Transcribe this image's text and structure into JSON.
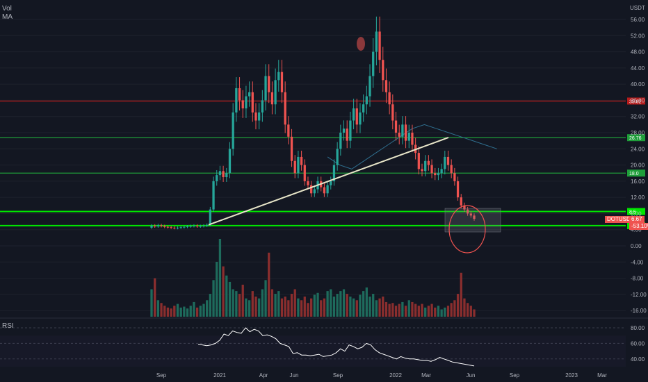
{
  "header": {
    "indicator_vol": "Vol",
    "indicator_ma": "MA",
    "currency": "USDT",
    "rsi_label": "RSI"
  },
  "colors": {
    "background": "#131722",
    "up": "#26a69a",
    "down": "#ef5350",
    "grid": "#1e222d",
    "axis_text": "#b2b5be",
    "bright_green_line": "#00e600",
    "dark_green_line": "#1f9e3a",
    "red_line": "#b71c1c",
    "ma_line": "#2962ff",
    "trend_line": "#e8e6c9",
    "rsi_line": "#ffffff",
    "ellipse": "#ef5350"
  },
  "chart_data": [
    {
      "type": "candlestick",
      "symbol": "DOTUSDT",
      "last_price": "6.67",
      "last_change": "-53.10%",
      "y_axis_ticks": [
        "56.00",
        "52.00",
        "48.00",
        "44.00",
        "40.00",
        "36.00",
        "32.00",
        "28.00",
        "24.00",
        "20.00",
        "16.00",
        "12.00",
        "8.00",
        "4.00",
        "0.00",
        "-4.00",
        "-8.00",
        "-12.00",
        "-16.00"
      ],
      "x_axis_ticks": [
        "Sep",
        "2021",
        "Apr",
        "Jun",
        "Sep",
        "2022",
        "Mar",
        "Jun",
        "Sep",
        "2023",
        "Mar"
      ],
      "horizontal_levels": [
        {
          "value": 35.82,
          "label": "35.82",
          "color": "#b71c1c"
        },
        {
          "value": 26.76,
          "label": "26.76",
          "color": "#1f9e3a"
        },
        {
          "value": 18.0,
          "label": "18.0",
          "color": "#1f9e3a"
        },
        {
          "value": 8.5,
          "label": "8.5",
          "color": "#00e600"
        },
        {
          "value": 5.0,
          "label": "5.0",
          "color": "#00e600"
        }
      ],
      "weekly_closes": [
        5.0,
        4.8,
        5.1,
        4.9,
        4.7,
        4.6,
        4.5,
        4.4,
        4.5,
        4.6,
        4.7,
        4.8,
        4.9,
        5.0,
        4.8,
        4.9,
        5.0,
        5.2,
        9.0,
        16.0,
        17.5,
        18.5,
        17.0,
        18.0,
        24.0,
        33.0,
        39.0,
        36.0,
        34.0,
        37.0,
        38.0,
        33.0,
        31.0,
        33.0,
        36.0,
        42.0,
        38.0,
        35.0,
        41.0,
        43.0,
        38.0,
        30.0,
        27.0,
        21.0,
        18.0,
        22.0,
        20.0,
        16.0,
        15.0,
        13.0,
        14.0,
        16.0,
        14.5,
        13.0,
        15.0,
        16.0,
        20.0,
        24.0,
        28.0,
        29.0,
        26.0,
        31.0,
        34.0,
        30.0,
        33.0,
        35.0,
        37.0,
        42.0,
        48.0,
        53.0,
        46.0,
        41.0,
        38.0,
        35.0,
        31.0,
        28.0,
        27.0,
        30.0,
        26.0,
        28.0,
        25.0,
        23.0,
        19.0,
        18.5,
        21.0,
        20.0,
        18.0,
        17.5,
        18.0,
        19.0,
        22.0,
        20.0,
        18.0,
        16.0,
        12.0,
        10.0,
        9.0,
        8.0,
        7.5,
        6.67
      ],
      "weekly_volumes": [
        30,
        42,
        18,
        15,
        12,
        10,
        9,
        12,
        14,
        10,
        11,
        9,
        12,
        16,
        10,
        12,
        14,
        18,
        25,
        40,
        60,
        85,
        55,
        45,
        38,
        30,
        28,
        25,
        35,
        20,
        18,
        28,
        22,
        20,
        30,
        40,
        70,
        30,
        25,
        28,
        20,
        22,
        18,
        25,
        30,
        20,
        18,
        22,
        15,
        20,
        24,
        26,
        18,
        20,
        28,
        30,
        22,
        25,
        28,
        30,
        25,
        22,
        20,
        18,
        24,
        28,
        32,
        22,
        25,
        18,
        20,
        22,
        16,
        14,
        15,
        12,
        14,
        16,
        12,
        18,
        16,
        14,
        12,
        14,
        10,
        12,
        14,
        10,
        12,
        8,
        10,
        12,
        15,
        18,
        25,
        48,
        20,
        15,
        12,
        8
      ],
      "trend_line": {
        "from_value": 5.2,
        "to_value": 26.8
      },
      "ma_values": [
        22,
        20,
        19,
        21,
        23,
        25,
        27,
        29,
        30,
        29,
        28,
        27,
        26,
        25,
        24
      ]
    },
    {
      "type": "line",
      "name": "RSI",
      "y_axis_ticks": [
        "80.00",
        "60.00",
        "40.00"
      ],
      "values": [
        59,
        58,
        57,
        58,
        60,
        64,
        72,
        70,
        76,
        74,
        73,
        80,
        75,
        78,
        76,
        70,
        71,
        69,
        66,
        60,
        58,
        56,
        47,
        48,
        45,
        45,
        44,
        45,
        46,
        43,
        44,
        45,
        48,
        53,
        50,
        58,
        56,
        53,
        55,
        60,
        58,
        52,
        48,
        46,
        44,
        42,
        40,
        43,
        41,
        40,
        40,
        39,
        38,
        38,
        37,
        39,
        42,
        40,
        38,
        36,
        35,
        34,
        33,
        32,
        31
      ]
    }
  ]
}
